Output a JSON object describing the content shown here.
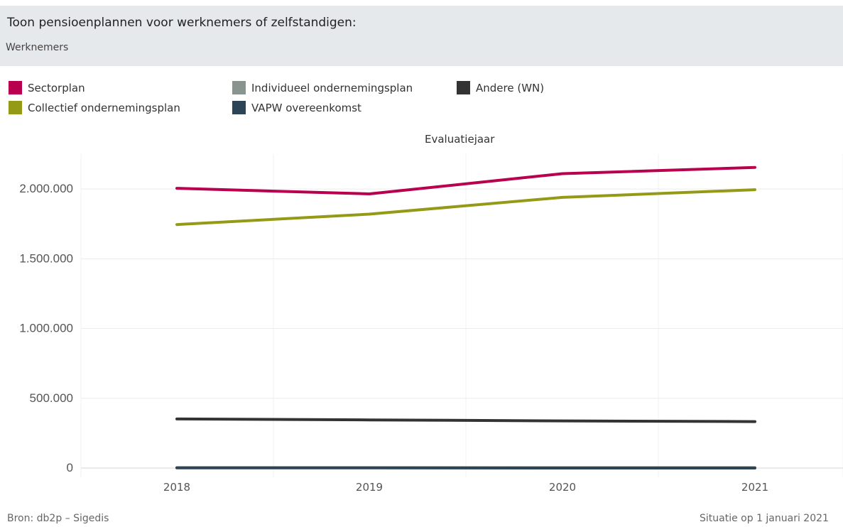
{
  "filter": {
    "title": "Toon pensioenplannen voor werknemers of zelfstandigen:",
    "value": "Werknemers"
  },
  "legend": [
    {
      "label": "Sectorplan",
      "color": "#b8004e"
    },
    {
      "label": "Collectief ondernemingsplan",
      "color": "#949a16"
    },
    {
      "label": "Individueel ondernemingsplan",
      "color": "#8a948e"
    },
    {
      "label": "VAPW overeenkomst",
      "color": "#2c4456"
    },
    {
      "label": "Andere (WN)",
      "color": "#333333"
    }
  ],
  "chart_data": {
    "type": "line",
    "title": "Evaluatiejaar",
    "x": [
      "2018",
      "2019",
      "2020",
      "2021"
    ],
    "ylim": [
      0,
      2250000
    ],
    "yticks": [
      0,
      500000,
      1000000,
      1500000,
      2000000
    ],
    "ytick_labels": [
      "0",
      "500.000",
      "1.000.000",
      "1.500.000",
      "2.000.000"
    ],
    "grid": true,
    "legend_position": "top",
    "series": [
      {
        "name": "Sectorplan",
        "color": "#b8004e",
        "values": [
          2005000,
          1965000,
          2110000,
          2155000
        ]
      },
      {
        "name": "Collectief ondernemingsplan",
        "color": "#949a16",
        "values": [
          1745000,
          1820000,
          1940000,
          1995000
        ]
      },
      {
        "name": "Individueel ondernemingsplan",
        "color": "#8a948e",
        "values": [
          3000,
          3000,
          3000,
          3000
        ]
      },
      {
        "name": "VAPW overeenkomst",
        "color": "#2c4456",
        "values": [
          1000,
          1000,
          0,
          0
        ]
      },
      {
        "name": "Andere (WN)",
        "color": "#333333",
        "values": [
          352000,
          345000,
          338000,
          333000
        ]
      }
    ]
  },
  "footer": {
    "source": "Bron: db2p – Sigedis",
    "situation": "Situatie op 1 januari 2021"
  }
}
